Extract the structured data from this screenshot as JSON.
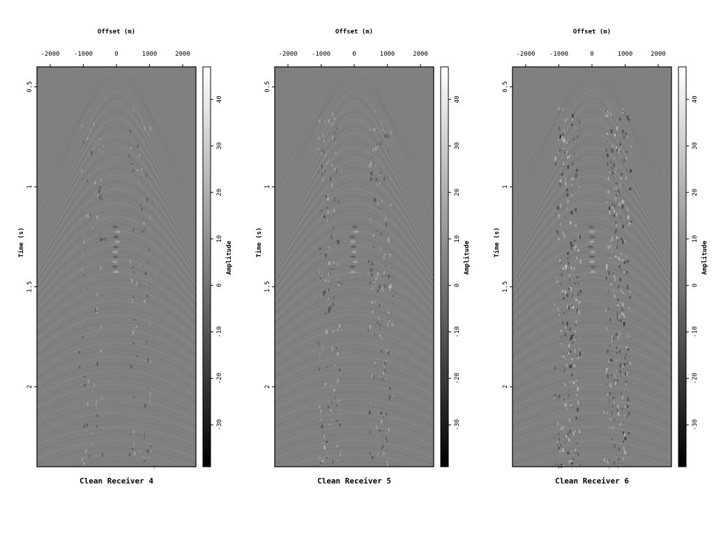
{
  "colors": {
    "background_gray": "#808080",
    "colorbar_min": "#000000",
    "colorbar_max": "#ffffff",
    "axis": "#000000"
  },
  "chart_data": [
    {
      "type": "heatmap",
      "title": "Clean Receiver 4",
      "xlabel": "Offset (m)",
      "ylabel": "Time (s)",
      "x_axis_position": "top",
      "xlim": [
        -2400,
        2400
      ],
      "ylim": [
        0.4,
        2.4
      ],
      "xticks": [
        -2000,
        -1000,
        0,
        1000,
        2000
      ],
      "yticks": [
        0.5,
        1,
        1.5,
        2
      ],
      "ytick_labels": [
        "0.5",
        "1",
        "1.5",
        "2"
      ],
      "colorbar": {
        "label": "Amplitude",
        "range": [
          -39,
          47
        ],
        "ticks": [
          -30,
          -20,
          -10,
          0,
          10,
          20,
          30,
          40
        ],
        "colormap": "gray"
      },
      "noise_level": 0.25,
      "grid": false
    },
    {
      "type": "heatmap",
      "title": "Clean Receiver 5",
      "xlabel": "Offset (m)",
      "ylabel": "Time (s)",
      "x_axis_position": "top",
      "xlim": [
        -2400,
        2400
      ],
      "ylim": [
        0.4,
        2.4
      ],
      "xticks": [
        -2000,
        -1000,
        0,
        1000,
        2000
      ],
      "yticks": [
        0.5,
        1,
        1.5,
        2
      ],
      "ytick_labels": [
        "0.5",
        "1",
        "1.5",
        "2"
      ],
      "colorbar": {
        "label": "Amplitude",
        "range": [
          -39,
          47
        ],
        "ticks": [
          -30,
          -20,
          -10,
          0,
          10,
          20,
          30,
          40
        ],
        "colormap": "gray"
      },
      "noise_level": 0.45,
      "grid": false
    },
    {
      "type": "heatmap",
      "title": "Clean Receiver 6",
      "xlabel": "Offset (m)",
      "ylabel": "Time (s)",
      "x_axis_position": "top",
      "xlim": [
        -2400,
        2400
      ],
      "ylim": [
        0.4,
        2.4
      ],
      "xticks": [
        -2000,
        -1000,
        0,
        1000,
        2000
      ],
      "yticks": [
        0.5,
        1,
        1.5,
        2
      ],
      "ytick_labels": [
        "0.5",
        "1",
        "1.5",
        "2"
      ],
      "colorbar": {
        "label": "Amplitude",
        "range": [
          -39,
          47
        ],
        "ticks": [
          -30,
          -20,
          -10,
          0,
          10,
          20,
          30,
          40
        ],
        "colormap": "gray"
      },
      "noise_level": 0.8,
      "grid": false
    }
  ]
}
